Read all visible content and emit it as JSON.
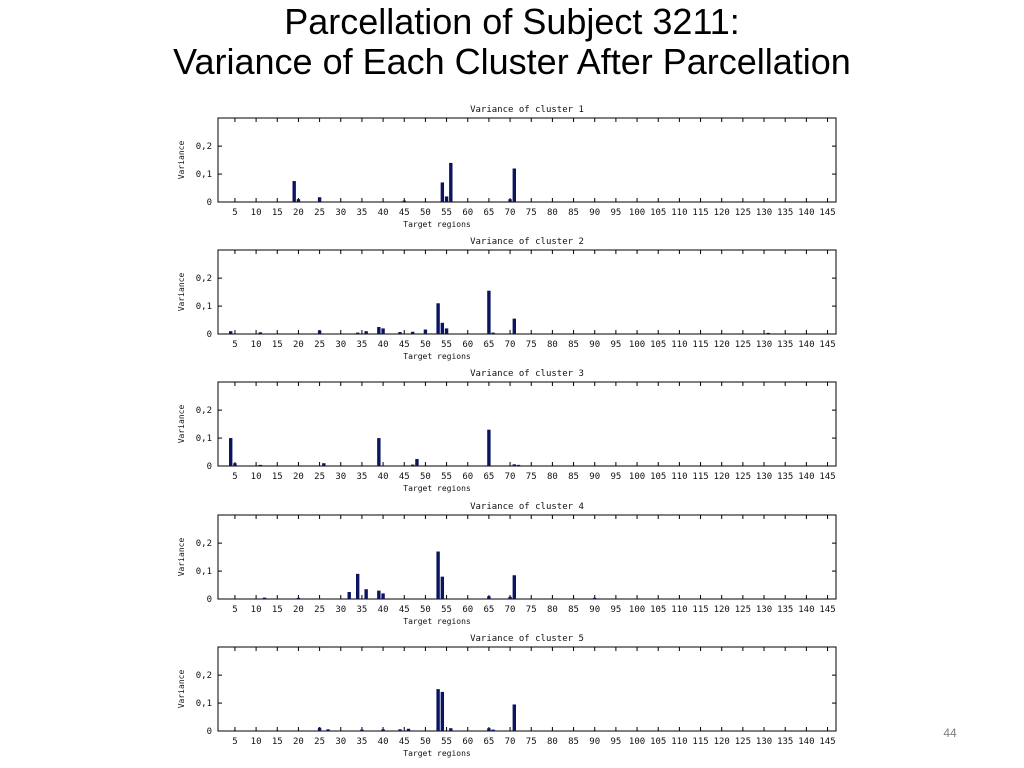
{
  "slide": {
    "title_line1": "Parcellation of Subject 3211:",
    "title_line2": "Variance of Each Cluster After Parcellation",
    "page_number": "44"
  },
  "colors": {
    "bar": "#0b1460",
    "axis": "#000000",
    "grid": "#000000"
  },
  "chart_data": [
    {
      "type": "bar",
      "title": "Variance of cluster 1",
      "xlabel": "Target regions",
      "ylabel": "Variance",
      "xlim": [
        1,
        147
      ],
      "ylim": [
        0,
        0.29
      ],
      "xticks": [
        5,
        10,
        15,
        20,
        25,
        30,
        35,
        40,
        45,
        50,
        55,
        60,
        65,
        70,
        75,
        80,
        85,
        90,
        95,
        100,
        105,
        110,
        115,
        120,
        125,
        130,
        135,
        140,
        145
      ],
      "yticks": [
        0,
        0.1,
        0.2
      ],
      "ytick_labels": [
        "0",
        "0,1",
        "0,2"
      ],
      "grid": false,
      "x": [
        19,
        20,
        25,
        45,
        54,
        55,
        56,
        70,
        71
      ],
      "values": [
        0.075,
        0.01,
        0.017,
        0.005,
        0.07,
        0.02,
        0.14,
        0.01,
        0.12
      ]
    },
    {
      "type": "bar",
      "title": "Variance of cluster 2",
      "xlabel": "Target regions",
      "ylabel": "Variance",
      "xlim": [
        1,
        147
      ],
      "ylim": [
        0,
        0.29
      ],
      "xticks": [
        5,
        10,
        15,
        20,
        25,
        30,
        35,
        40,
        45,
        50,
        55,
        60,
        65,
        70,
        75,
        80,
        85,
        90,
        95,
        100,
        105,
        110,
        115,
        120,
        125,
        130,
        135,
        140,
        145
      ],
      "yticks": [
        0,
        0.1,
        0.2
      ],
      "ytick_labels": [
        "0",
        "0,1",
        "0,2"
      ],
      "grid": false,
      "x": [
        4,
        11,
        25,
        34,
        36,
        39,
        40,
        44,
        47,
        50,
        53,
        54,
        55,
        65,
        66,
        71,
        131
      ],
      "values": [
        0.01,
        0.006,
        0.013,
        0.005,
        0.01,
        0.025,
        0.02,
        0.007,
        0.008,
        0.016,
        0.11,
        0.04,
        0.02,
        0.155,
        0.005,
        0.055,
        0.004
      ]
    },
    {
      "type": "bar",
      "title": "Variance of cluster 3",
      "xlabel": "Target regions",
      "ylabel": "Variance",
      "xlim": [
        1,
        147
      ],
      "ylim": [
        0,
        0.29
      ],
      "xticks": [
        5,
        10,
        15,
        20,
        25,
        30,
        35,
        40,
        45,
        50,
        55,
        60,
        65,
        70,
        75,
        80,
        85,
        90,
        95,
        100,
        105,
        110,
        115,
        120,
        125,
        130,
        135,
        140,
        145
      ],
      "yticks": [
        0,
        0.1,
        0.2
      ],
      "ytick_labels": [
        "0",
        "0,1",
        "0,2"
      ],
      "grid": false,
      "x": [
        4,
        5,
        11,
        26,
        39,
        47,
        48,
        65,
        71,
        72
      ],
      "values": [
        0.1,
        0.01,
        0.004,
        0.01,
        0.1,
        0.005,
        0.025,
        0.13,
        0.006,
        0.004
      ]
    },
    {
      "type": "bar",
      "title": "Variance of cluster 4",
      "xlabel": "Target regions",
      "ylabel": "Variance",
      "xlim": [
        1,
        147
      ],
      "ylim": [
        0,
        0.29
      ],
      "xticks": [
        5,
        10,
        15,
        20,
        25,
        30,
        35,
        40,
        45,
        50,
        55,
        60,
        65,
        70,
        75,
        80,
        85,
        90,
        95,
        100,
        105,
        110,
        115,
        120,
        125,
        130,
        135,
        140,
        145
      ],
      "yticks": [
        0,
        0.1,
        0.2
      ],
      "ytick_labels": [
        "0",
        "0,1",
        "0,2"
      ],
      "grid": false,
      "x": [
        12,
        20,
        32,
        34,
        36,
        39,
        40,
        53,
        54,
        65,
        70,
        71,
        90
      ],
      "values": [
        0.005,
        0.004,
        0.025,
        0.09,
        0.035,
        0.03,
        0.02,
        0.17,
        0.08,
        0.01,
        0.008,
        0.085,
        0.004
      ]
    },
    {
      "type": "bar",
      "title": "Variance of cluster 5",
      "xlabel": "Target regions",
      "ylabel": "Variance",
      "xlim": [
        1,
        147
      ],
      "ylim": [
        0,
        0.29
      ],
      "xticks": [
        5,
        10,
        15,
        20,
        25,
        30,
        35,
        40,
        45,
        50,
        55,
        60,
        65,
        70,
        75,
        80,
        85,
        90,
        95,
        100,
        105,
        110,
        115,
        120,
        125,
        130,
        135,
        140,
        145
      ],
      "yticks": [
        0,
        0.1,
        0.2
      ],
      "ytick_labels": [
        "0",
        "0,1",
        "0,2"
      ],
      "grid": false,
      "x": [
        25,
        27,
        35,
        40,
        44,
        46,
        53,
        54,
        56,
        65,
        66,
        71
      ],
      "values": [
        0.012,
        0.006,
        0.005,
        0.006,
        0.006,
        0.008,
        0.15,
        0.14,
        0.01,
        0.01,
        0.005,
        0.095
      ]
    }
  ]
}
